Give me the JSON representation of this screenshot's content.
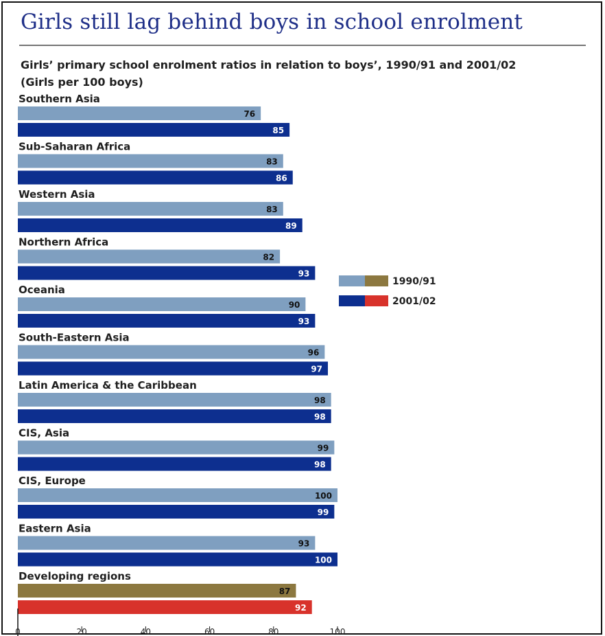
{
  "title": "Girls still lag behind boys in school enrolment",
  "subtitle": "Girls’ primary school enrolment ratios in relation to boys’, 1990/91 and 2001/02 (Girls per 100 boys)",
  "colors": {
    "title": "#1f2f88",
    "bar_1990": "#7f9fc0",
    "bar_2001": "#0d2f8f",
    "developing_1990": "#8c7840",
    "developing_2001": "#d8322b",
    "axis": "#111111",
    "text": "#1f1f1f"
  },
  "legend": {
    "series_1990": "1990/91",
    "series_2001": "2001/02"
  },
  "chart_data": {
    "type": "bar",
    "orientation": "horizontal",
    "title": "Girls still lag behind boys in school enrolment",
    "subtitle": "Girls’ primary school enrolment ratios in relation to boys’, 1990/91 and 2001/02 (Girls per 100 boys)",
    "categories": [
      "Southern Asia",
      "Sub-Saharan Africa",
      "Western Asia",
      "Northern Africa",
      "Oceania",
      "South-Eastern Asia",
      "Latin America & the Caribbean",
      "CIS, Asia",
      "CIS, Europe",
      "Eastern Asia",
      "Developing regions"
    ],
    "series": [
      {
        "name": "1990/91",
        "values": [
          76,
          83,
          83,
          82,
          90,
          96,
          98,
          99,
          100,
          93,
          87
        ]
      },
      {
        "name": "2001/02",
        "values": [
          85,
          86,
          89,
          93,
          93,
          97,
          98,
          98,
          99,
          100,
          92
        ]
      }
    ],
    "xlim": [
      0,
      100
    ],
    "xticks": [
      0,
      20,
      40,
      60,
      80,
      100
    ],
    "legend_position": "right",
    "grid": false
  }
}
